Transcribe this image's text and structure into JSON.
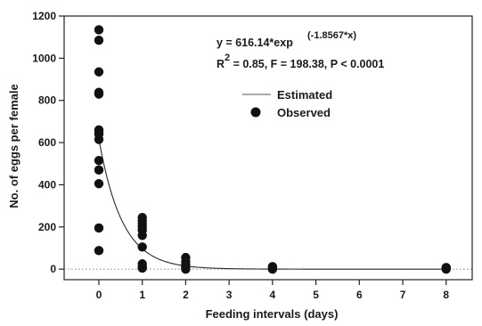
{
  "chart_data": {
    "type": "scatter",
    "xlabel": "Feeding intervals (days)",
    "ylabel": "No. of eggs per female",
    "xlim": [
      -0.8,
      8.6
    ],
    "ylim": [
      -50,
      1200
    ],
    "x_ticks": [
      0,
      1,
      2,
      3,
      4,
      5,
      6,
      7,
      8
    ],
    "y_ticks": [
      0,
      200,
      400,
      600,
      800,
      1000,
      1200
    ],
    "grid": false,
    "reference_line": {
      "y": 0,
      "style": "dotted"
    },
    "annotation": {
      "equation_main": "y = 616.14*exp",
      "equation_exponent": "(-1.8567*x)",
      "stats_prefix": "R",
      "stats_sup": "2",
      "stats_rest": " = 0.85, F = 198.38, P < 0.0001"
    },
    "legend": {
      "position": "top-right",
      "entries": [
        {
          "label": "Estimated",
          "marker": "line"
        },
        {
          "label": "Observed",
          "marker": "circle"
        }
      ]
    },
    "series": [
      {
        "name": "Estimated",
        "kind": "line",
        "model": {
          "a": 616.14,
          "b": -1.8567
        },
        "x_range": [
          0,
          8
        ],
        "color": "#2a2a2a"
      },
      {
        "name": "Observed",
        "kind": "scatter",
        "color": "#111111",
        "x": [
          0,
          0,
          0,
          0,
          0,
          0,
          0,
          0,
          0,
          0,
          0,
          0,
          0,
          0,
          1,
          1,
          1,
          1,
          1,
          1,
          1,
          1,
          1,
          1,
          2,
          2,
          2,
          2,
          2,
          2,
          4,
          4,
          4,
          8,
          8,
          8
        ],
        "y": [
          1135,
          1085,
          935,
          838,
          660,
          650,
          615,
          515,
          470,
          405,
          195,
          88,
          640,
          830,
          245,
          230,
          215,
          200,
          185,
          160,
          105,
          25,
          10,
          5,
          55,
          35,
          20,
          10,
          5,
          0,
          12,
          5,
          0,
          8,
          3,
          0
        ]
      }
    ]
  }
}
